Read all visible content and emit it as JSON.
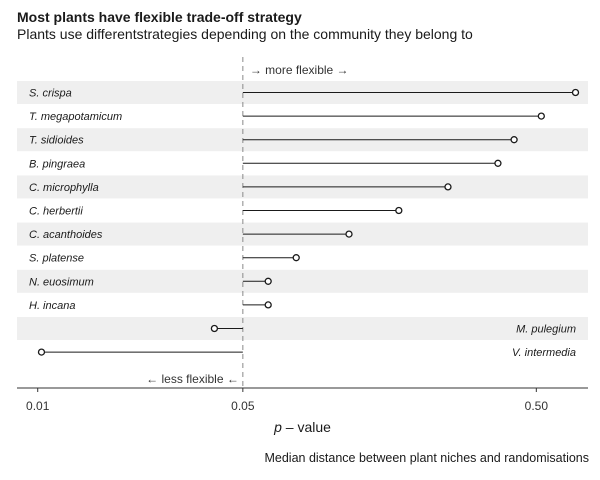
{
  "title": "Most plants have flexible trade-off strategy",
  "subtitle": "Plants use differentstrategies depending on the community they belong to",
  "caption": "Median distance between plant niches and randomisations",
  "chart_data": {
    "type": "lollipop",
    "xscale": "log10",
    "xlim": [
      0.0085,
      0.75
    ],
    "threshold": 0.05,
    "xticks": [
      {
        "value": 0.01,
        "label": "0.01"
      },
      {
        "value": 0.05,
        "label": "0.05"
      },
      {
        "value": 0.5,
        "label": "0.50"
      }
    ],
    "xlabel_italic": "p",
    "xlabel_rest": " – value",
    "annot_top": "→ more flexible →",
    "annot_bottom": "← less flexible ←",
    "species": [
      {
        "name": "S. crispa",
        "value": 0.68
      },
      {
        "name": "T. megapotamicum",
        "value": 0.52
      },
      {
        "name": "T. sidioides",
        "value": 0.42
      },
      {
        "name": "B. pingraea",
        "value": 0.37
      },
      {
        "name": "C. microphylla",
        "value": 0.25
      },
      {
        "name": "C. herbertii",
        "value": 0.17
      },
      {
        "name": "C. acanthoides",
        "value": 0.115
      },
      {
        "name": "S. platense",
        "value": 0.076
      },
      {
        "name": "N. euosimum",
        "value": 0.061
      },
      {
        "name": "H. incana",
        "value": 0.061
      },
      {
        "name": "M. pulegium",
        "value": 0.04
      },
      {
        "name": "V. intermedia",
        "value": 0.0103
      }
    ],
    "grid": false
  }
}
